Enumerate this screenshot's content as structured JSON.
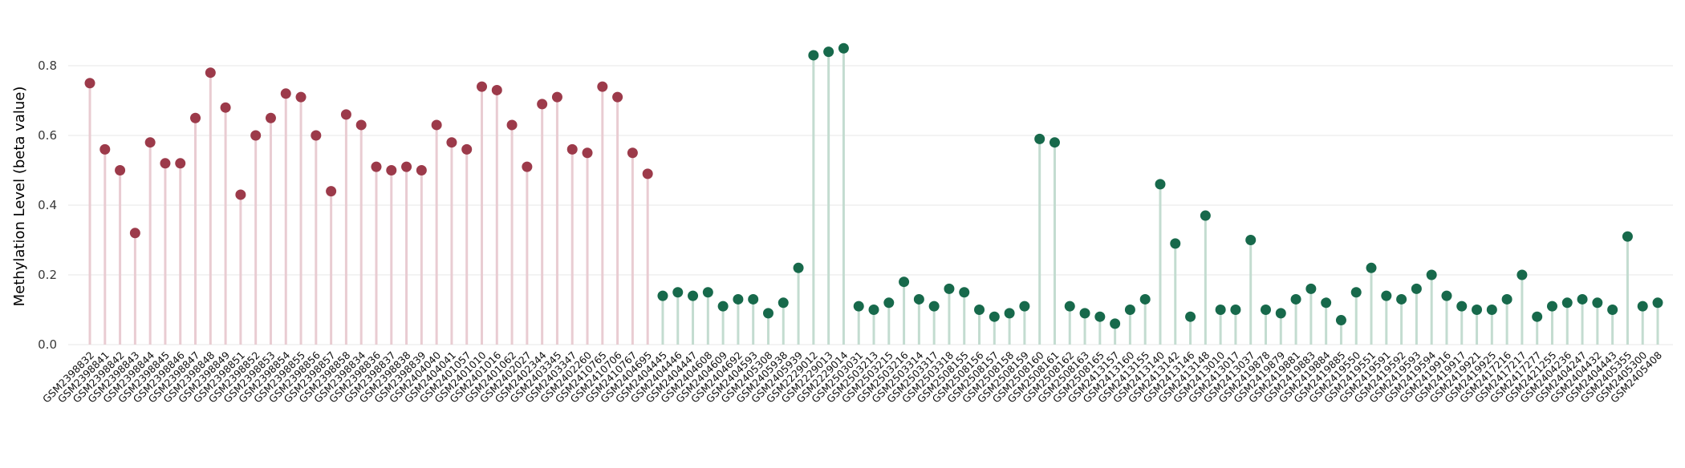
{
  "figure": {
    "background": "#ffffff",
    "grid_color": "#ececec",
    "tick_label_color": "#3a3a3a",
    "x_label_color": "#111111"
  },
  "chart_data": {
    "type": "lollipop",
    "title": "",
    "xlabel": "",
    "ylabel": "Methylation Level (beta value)",
    "ylim": [
      0,
      0.9
    ],
    "yticks": [
      0.0,
      0.2,
      0.4,
      0.6,
      0.8
    ],
    "grid": true,
    "legend": false,
    "groups": [
      {
        "name": "group-red",
        "dot_color": "#9c3a4a",
        "stem_color": "#e9ccd2",
        "categories": [
          "GSM2398832",
          "GSM2398841",
          "GSM2398842",
          "GSM2398843",
          "GSM2398844",
          "GSM2398845",
          "GSM2398846",
          "GSM2398847",
          "GSM2398848",
          "GSM2398849",
          "GSM2398851",
          "GSM2398852",
          "GSM2398853",
          "GSM2398854",
          "GSM2398855",
          "GSM2398856",
          "GSM2398857",
          "GSM2398858",
          "GSM2398834",
          "GSM2398836",
          "GSM2398837",
          "GSM2398838",
          "GSM2398839",
          "GSM2404040",
          "GSM2404041",
          "GSM2401057",
          "GSM2401010",
          "GSM2401016",
          "GSM2401062",
          "GSM2402027",
          "GSM2402344",
          "GSM2403345",
          "GSM2403347",
          "GSM2402260",
          "GSM2410765",
          "GSM2410706",
          "GSM2410767",
          "GSM2404695"
        ],
        "values": [
          0.75,
          0.56,
          0.5,
          0.32,
          0.58,
          0.52,
          0.52,
          0.65,
          0.78,
          0.68,
          0.43,
          0.6,
          0.65,
          0.72,
          0.71,
          0.6,
          0.44,
          0.66,
          0.63,
          0.51,
          0.5,
          0.51,
          0.5,
          0.63,
          0.58,
          0.56,
          0.74,
          0.73,
          0.63,
          0.51,
          0.69,
          0.71,
          0.56,
          0.55,
          0.74,
          0.71,
          0.55,
          0.49
        ]
      },
      {
        "name": "group-green",
        "dot_color": "#17694b",
        "stem_color": "#c3dcd0",
        "categories": [
          "GSM2404445",
          "GSM2404446",
          "GSM2404447",
          "GSM2404608",
          "GSM2404609",
          "GSM2404692",
          "GSM2404593",
          "GSM2405308",
          "GSM2405938",
          "GSM2405939",
          "GSM2229012",
          "GSM2229013",
          "GSM2229014",
          "GSM2503031",
          "GSM2503213",
          "GSM2503215",
          "GSM2503216",
          "GSM2503314",
          "GSM2503317",
          "GSM2503318",
          "GSM2508155",
          "GSM2508156",
          "GSM2508157",
          "GSM2508158",
          "GSM2508159",
          "GSM2508160",
          "GSM2508161",
          "GSM2508162",
          "GSM2508163",
          "GSM2508165",
          "GSM2413157",
          "GSM2413160",
          "GSM2413155",
          "GSM2413140",
          "GSM2413142",
          "GSM2413146",
          "GSM2413148",
          "GSM2413010",
          "GSM2413017",
          "GSM2413037",
          "GSM2419878",
          "GSM2419879",
          "GSM2419881",
          "GSM2419883",
          "GSM2419884",
          "GSM2419885",
          "GSM2419550",
          "GSM2419551",
          "GSM2419591",
          "GSM2419592",
          "GSM2419593",
          "GSM2419594",
          "GSM2419916",
          "GSM2419917",
          "GSM2419921",
          "GSM2419925",
          "GSM2417216",
          "GSM2417217",
          "GSM2417277",
          "GSM2421255",
          "GSM2404236",
          "GSM2404247",
          "GSM2404432",
          "GSM2404443",
          "GSM2405355",
          "GSM2405300",
          "GSM2405408"
        ],
        "values": [
          0.14,
          0.15,
          0.14,
          0.15,
          0.11,
          0.13,
          0.13,
          0.09,
          0.12,
          0.22,
          0.83,
          0.84,
          0.85,
          0.11,
          0.1,
          0.12,
          0.18,
          0.13,
          0.11,
          0.16,
          0.15,
          0.1,
          0.08,
          0.09,
          0.11,
          0.59,
          0.58,
          0.11,
          0.09,
          0.08,
          0.06,
          0.1,
          0.13,
          0.46,
          0.29,
          0.08,
          0.37,
          0.1,
          0.1,
          0.3,
          0.1,
          0.09,
          0.13,
          0.16,
          0.12,
          0.07,
          0.15,
          0.22,
          0.14,
          0.13,
          0.16,
          0.2,
          0.14,
          0.11,
          0.1,
          0.1,
          0.13,
          0.2,
          0.08,
          0.11,
          0.12,
          0.13,
          0.12,
          0.1,
          0.31,
          0.11,
          0.12
        ]
      }
    ]
  }
}
